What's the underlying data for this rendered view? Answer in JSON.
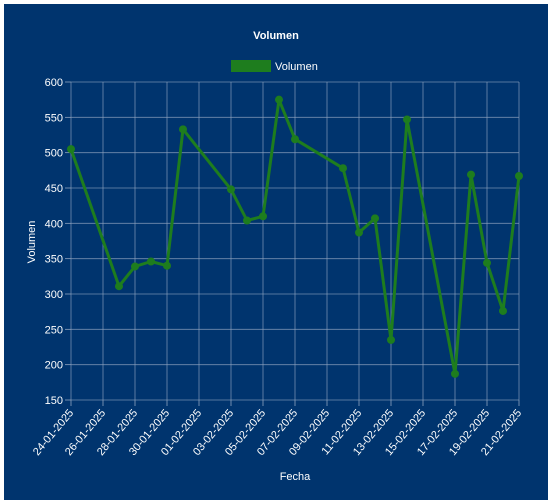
{
  "chart_data": {
    "type": "line",
    "title": "Volumen",
    "xlabel": "Fecha",
    "ylabel": "Volumen",
    "ylim": [
      150,
      600
    ],
    "yticks": [
      150,
      200,
      250,
      300,
      350,
      400,
      450,
      500,
      550,
      600
    ],
    "xlim": [
      "2025-01-24",
      "2025-02-21"
    ],
    "x_tick_labels": [
      "24-01-2025",
      "26-01-2025",
      "28-01-2025",
      "30-01-2025",
      "01-02-2025",
      "03-02-2025",
      "05-02-2025",
      "07-02-2025",
      "09-02-2025",
      "11-02-2025",
      "13-02-2025",
      "15-02-2025",
      "17-02-2025",
      "19-02-2025",
      "21-02-2025"
    ],
    "grid": true,
    "legend": "top-center",
    "series": [
      {
        "name": "Volumen",
        "color": "#1e7d1e",
        "points": [
          {
            "x": "2025-01-24",
            "y": 505
          },
          {
            "x": "2025-01-27",
            "y": 311
          },
          {
            "x": "2025-01-28",
            "y": 339
          },
          {
            "x": "2025-01-29",
            "y": 346
          },
          {
            "x": "2025-01-30",
            "y": 340
          },
          {
            "x": "2025-01-31",
            "y": 533
          },
          {
            "x": "2025-02-03",
            "y": 448
          },
          {
            "x": "2025-02-04",
            "y": 404
          },
          {
            "x": "2025-02-05",
            "y": 410
          },
          {
            "x": "2025-02-06",
            "y": 575
          },
          {
            "x": "2025-02-07",
            "y": 519
          },
          {
            "x": "2025-02-10",
            "y": 478
          },
          {
            "x": "2025-02-11",
            "y": 387
          },
          {
            "x": "2025-02-12",
            "y": 407
          },
          {
            "x": "2025-02-13",
            "y": 235
          },
          {
            "x": "2025-02-14",
            "y": 547
          },
          {
            "x": "2025-02-17",
            "y": 187
          },
          {
            "x": "2025-02-18",
            "y": 469
          },
          {
            "x": "2025-02-19",
            "y": 344
          },
          {
            "x": "2025-02-20",
            "y": 276
          },
          {
            "x": "2025-02-21",
            "y": 467
          }
        ]
      }
    ]
  }
}
